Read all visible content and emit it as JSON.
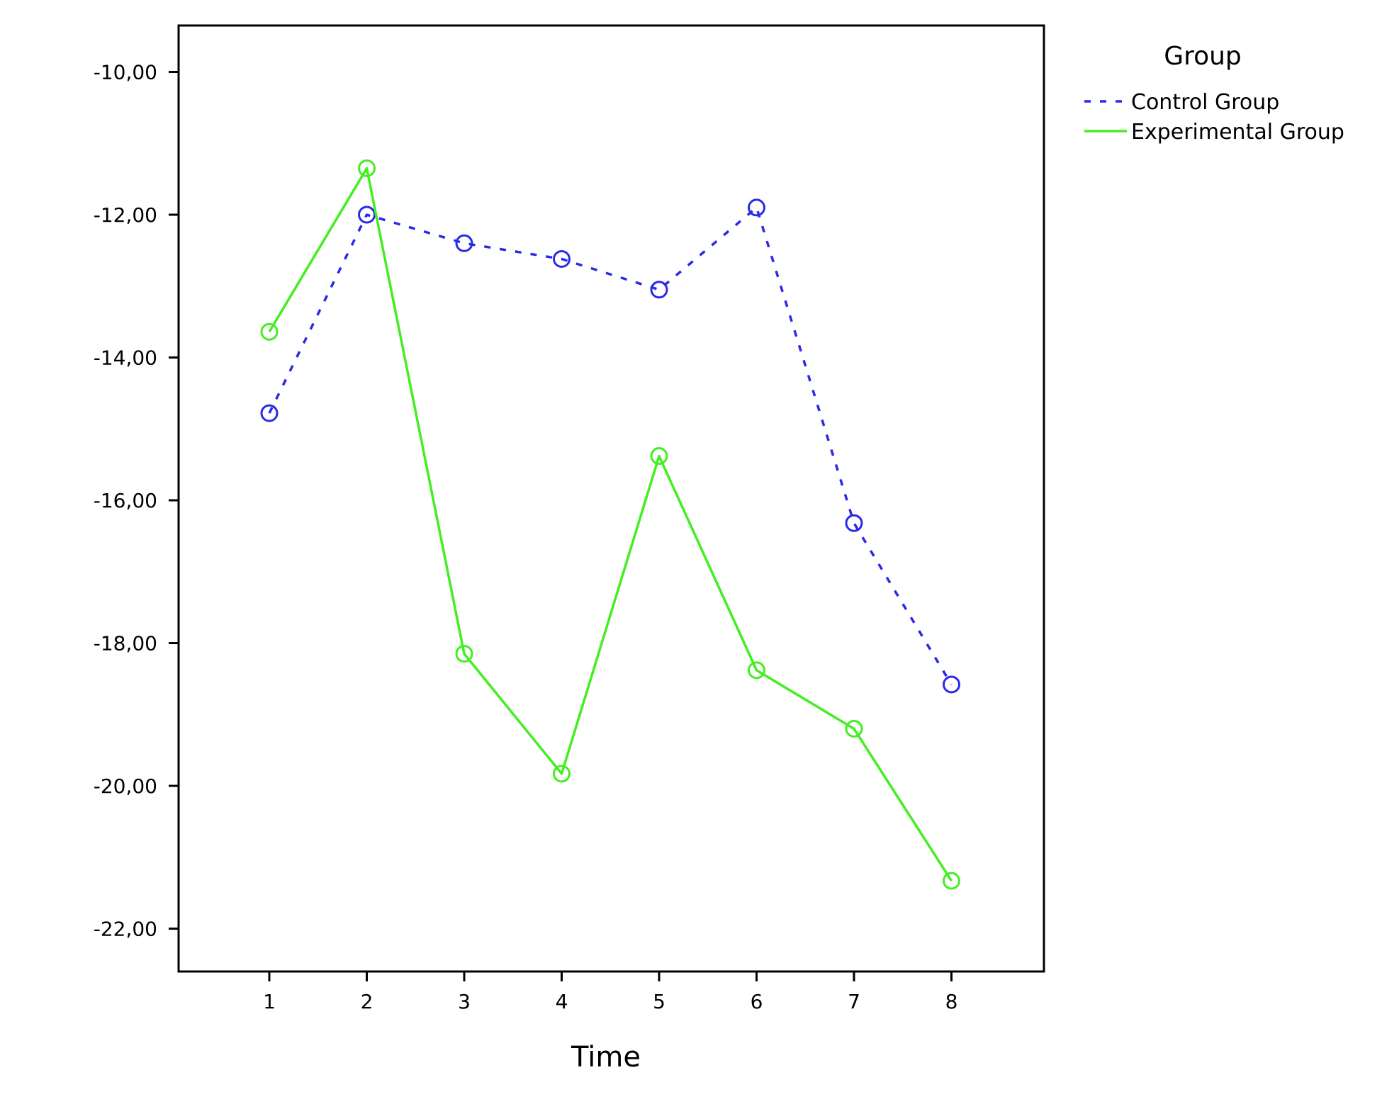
{
  "chart_data": {
    "type": "line",
    "title": "",
    "xlabel": "Time",
    "ylabel": "",
    "categories": [
      "1",
      "2",
      "3",
      "4",
      "5",
      "6",
      "7",
      "8"
    ],
    "ylim": [
      -22.6,
      -9.35
    ],
    "yticks": [
      -10,
      -12,
      -14,
      -16,
      -18,
      -20,
      -22
    ],
    "ytick_labels": [
      "-10,00",
      "-12,00",
      "-14,00",
      "-16,00",
      "-18,00",
      "-20,00",
      "-22,00"
    ],
    "grid": false,
    "legend": {
      "title": "Group",
      "placement": "right-top"
    },
    "series": [
      {
        "name": "Control Group",
        "color": "#2a2ae8",
        "line_style": "dashed",
        "marker": "open-circle",
        "values": [
          -14.78,
          -12.0,
          -12.4,
          -12.62,
          -13.05,
          -11.9,
          -16.32,
          -18.58
        ]
      },
      {
        "name": "Experimental Group",
        "color": "#44ee22",
        "line_style": "solid",
        "marker": "open-circle",
        "values": [
          -13.64,
          -11.35,
          -18.15,
          -19.83,
          -15.38,
          -18.38,
          -19.2,
          -21.33
        ]
      }
    ]
  }
}
